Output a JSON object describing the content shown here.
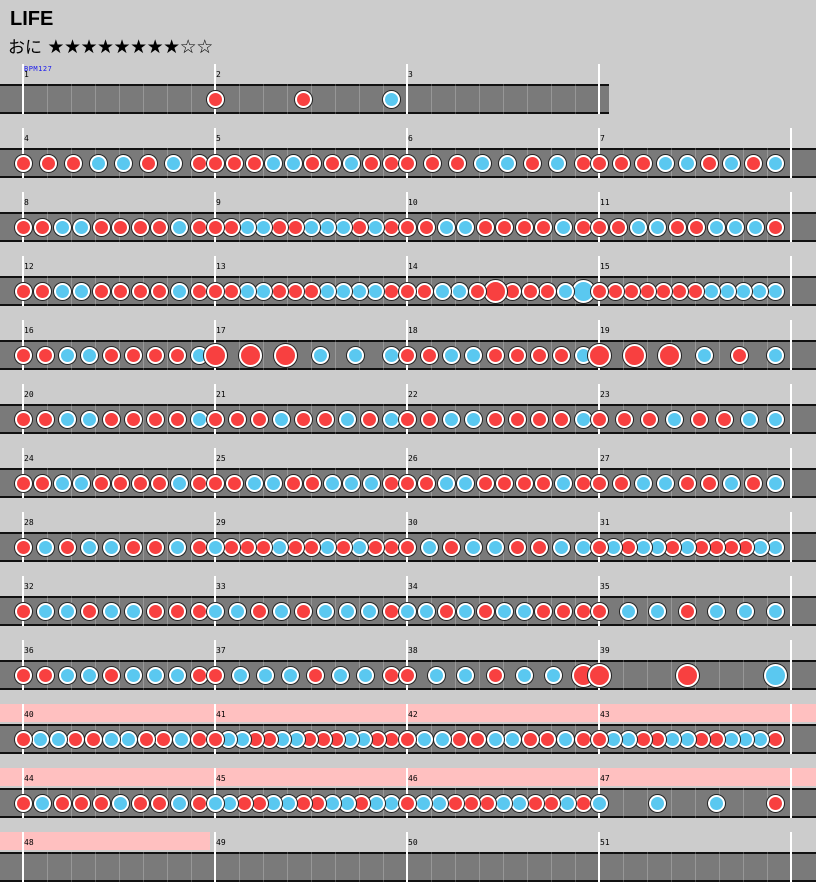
{
  "song": {
    "title": "LIFE",
    "difficulty": "おに",
    "stars": "★★★★★★★★☆☆",
    "bpm_label": "BPM127"
  },
  "colors": {
    "background": "#cccccc",
    "lane": "#7a7a7a",
    "don": "#f84040",
    "ka": "#5ac8f0",
    "gogo": "#ffc0c0"
  },
  "legend": {
    "d": "don (red)",
    "k": "ka (blue)",
    "D": "big don",
    "K": "big ka"
  },
  "rows": [
    {
      "start": 1,
      "measures": 3,
      "gogo": 0,
      "notes": [
        "",
        "ddk",
        ""
      ]
    },
    {
      "start": 4,
      "measures": 4,
      "gogo": 0,
      "notes": [
        "dddkkdkd",
        "dddkkddkdd",
        "dddkkdkd",
        "dddkkdkdk"
      ]
    },
    {
      "start": 8,
      "measures": 4,
      "gogo": 0,
      "notes": [
        "ddkkddddkd",
        "ddkkddkkkdkd",
        "ddkkddddkd",
        "ddkkddkkkd"
      ]
    },
    {
      "start": 12,
      "measures": 4,
      "gogo": 0,
      "notes": [
        "ddkkddddkd",
        "ddkkdddkkkkd",
        "ddkkdDdddkK",
        "dddddddkkkkk"
      ]
    },
    {
      "start": 16,
      "measures": 4,
      "gogo": 0,
      "notes": [
        "ddkkddddk",
        "DDDkkk",
        "ddkkddddk",
        "DDDkdk"
      ]
    },
    {
      "start": 20,
      "measures": 4,
      "gogo": 0,
      "notes": [
        "ddkkddddk",
        "dddkddkdk",
        "ddkkddddk",
        "dddkddkk"
      ]
    },
    {
      "start": 24,
      "measures": 4,
      "gogo": 0,
      "notes": [
        "ddkkddddkd",
        "ddkkddkkkd",
        "ddkkddddkd",
        "ddkkddkdk"
      ]
    },
    {
      "start": 28,
      "measures": 4,
      "gogo": 0,
      "notes": [
        "dkdkkddkd",
        "kdddkddkdkdd",
        "dkdkkddkk",
        "dkdkkdkddddkk"
      ]
    },
    {
      "start": 32,
      "measures": 4,
      "gogo": 0,
      "notes": [
        "dkkdkkddd",
        "kkdkdkkkd",
        "kkdkdkkddd",
        "dkkdkkk"
      ]
    },
    {
      "start": 36,
      "measures": 4,
      "gogo": 0,
      "notes": [
        "ddkkdkkkd",
        "dkkkdkkd",
        "dkkdkkD",
        "DDK"
      ]
    },
    {
      "start": 40,
      "measures": 4,
      "gogo": 4,
      "notes": [
        "dkkddkkddkd",
        "dkkddkkdddkkdd",
        "dkkddkkddkd",
        "dkkddkkddkkkd"
      ]
    },
    {
      "start": 44,
      "measures": 4,
      "gogo": 4,
      "notes": [
        "dkdddkddkd",
        "kkddkkddkkdkk",
        "dkkdddkkddkd",
        "kkkd"
      ]
    },
    {
      "start": 48,
      "measures": 4,
      "gogo": 1,
      "notes": [
        "",
        "",
        "",
        ""
      ]
    }
  ]
}
